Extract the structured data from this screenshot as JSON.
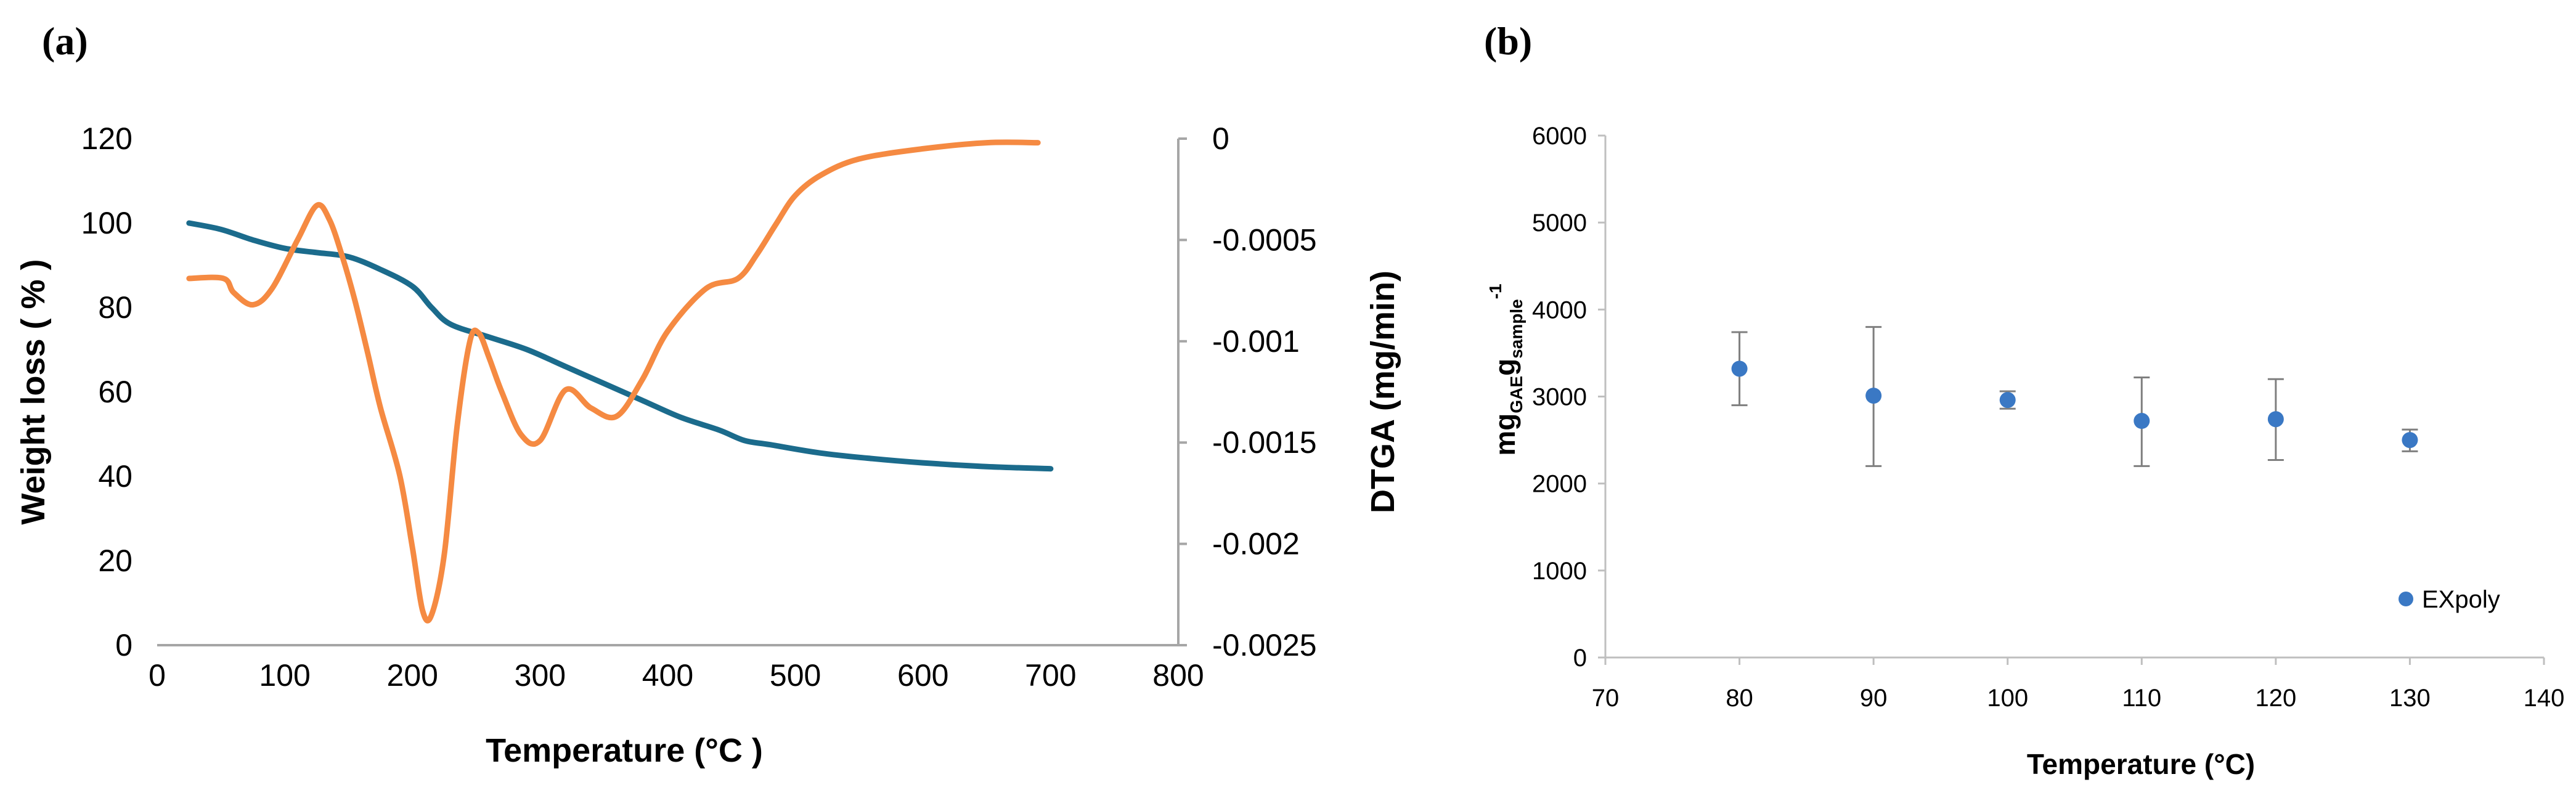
{
  "panels": {
    "a": "(a)",
    "b": "(b)"
  },
  "colors": {
    "weight": "#1b6b8c",
    "dtga": "#f58a42",
    "axis": "#a6a6a6",
    "point": "#3a78c4",
    "errorbar": "#7f7f7f"
  },
  "chart_data": [
    {
      "type": "line",
      "title": "",
      "xlabel": "Temperature (°C )",
      "ylabel": "Weight loss ( % )",
      "y2label": "DTGA (mg/min)",
      "xlim": [
        0,
        800
      ],
      "ylim": [
        0,
        120
      ],
      "y2lim": [
        -0.0025,
        0
      ],
      "xticks": [
        "0",
        "100",
        "200",
        "300",
        "400",
        "500",
        "600",
        "700",
        "800"
      ],
      "yticks": [
        "0",
        "20",
        "40",
        "60",
        "80",
        "100",
        "120"
      ],
      "y2ticks": [
        "0",
        "-0.0005",
        "-0.001",
        "-0.0015",
        "-0.002",
        "-0.0025"
      ],
      "series": [
        {
          "name": "Weight loss",
          "axis": "left",
          "x": [
            25,
            50,
            75,
            100,
            125,
            150,
            175,
            200,
            215,
            230,
            260,
            290,
            320,
            350,
            380,
            410,
            440,
            460,
            480,
            520,
            560,
            600,
            650,
            700
          ],
          "y": [
            100,
            98.5,
            96,
            94,
            93,
            92,
            89,
            85,
            80,
            76,
            73,
            70,
            66,
            62,
            58,
            54,
            51,
            48.5,
            47.5,
            45.5,
            44.2,
            43.2,
            42.3,
            41.8
          ]
        },
        {
          "name": "DTGA",
          "axis": "right",
          "x": [
            25,
            52,
            60,
            75,
            90,
            110,
            125,
            135,
            145,
            155,
            165,
            175,
            190,
            200,
            208,
            215,
            225,
            235,
            245,
            252,
            260,
            270,
            285,
            300,
            320,
            340,
            360,
            380,
            400,
            430,
            455,
            470,
            485,
            500,
            520,
            550,
            600,
            650,
            690
          ],
          "y": [
            -0.00069,
            -0.00069,
            -0.00076,
            -0.00082,
            -0.00074,
            -0.0005,
            -0.00033,
            -0.0004,
            -0.00058,
            -0.0008,
            -0.00106,
            -0.00133,
            -0.00166,
            -0.00202,
            -0.00233,
            -0.00235,
            -0.00205,
            -0.00142,
            -0.001,
            -0.00096,
            -0.00108,
            -0.00125,
            -0.00146,
            -0.00149,
            -0.00124,
            -0.00133,
            -0.00137,
            -0.00119,
            -0.00095,
            -0.00074,
            -0.00069,
            -0.00057,
            -0.00042,
            -0.00028,
            -0.00018,
            -0.0001,
            -5e-05,
            -2e-05,
            -2e-05
          ]
        }
      ]
    },
    {
      "type": "scatter",
      "title": "",
      "xlabel": "Temperature (°C)",
      "ylabel": "mg_GAE g_sample^-1",
      "ylabel_parts": {
        "main1": "mg",
        "sub1": "GAE",
        "main2": "g",
        "sub2": "sample",
        "sup": "-1"
      },
      "xlim": [
        70,
        140
      ],
      "ylim": [
        0,
        6000
      ],
      "xticks": [
        "70",
        "80",
        "90",
        "100",
        "110",
        "120",
        "130",
        "140"
      ],
      "yticks": [
        "0",
        "1000",
        "2000",
        "3000",
        "4000",
        "5000",
        "6000"
      ],
      "legend": "EXpoly",
      "legend_position": "bottom-right",
      "series": [
        {
          "name": "EXpoly",
          "x": [
            80,
            90,
            100,
            110,
            120,
            130
          ],
          "y": [
            3320,
            3010,
            2960,
            2720,
            2740,
            2500
          ],
          "err_low": [
            2900,
            2200,
            2860,
            2200,
            2270,
            2370
          ],
          "err_high": [
            3740,
            3800,
            3060,
            3220,
            3200,
            2620
          ]
        }
      ]
    }
  ]
}
